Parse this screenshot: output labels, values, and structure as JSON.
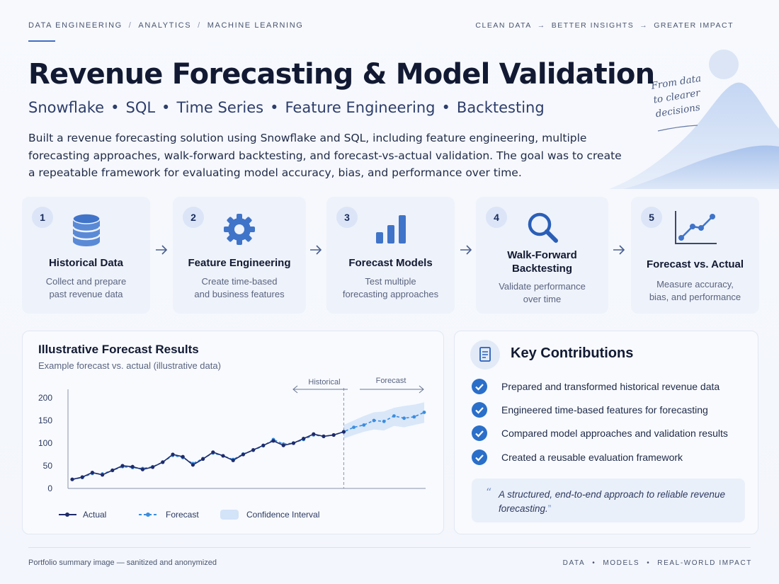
{
  "nav": {
    "items": [
      "DATA ENGINEERING",
      "ANALYTICS",
      "MACHINE LEARNING"
    ],
    "separator": "/"
  },
  "tagline": {
    "items": [
      "CLEAN DATA",
      "BETTER INSIGHTS",
      "GREATER IMPACT"
    ],
    "arrow": "→"
  },
  "hero": {
    "title": "Revenue Forecasting & Model Validation",
    "tags": [
      "Snowflake",
      "SQL",
      "Time Series",
      "Feature Engineering",
      "Backtesting"
    ],
    "tag_separator": "•",
    "description": "Built a revenue forecasting solution using Snowflake and SQL, including feature engineering, multiple forecasting approaches, walk-forward backtesting, and forecast-vs-actual validation. The goal was to create a repeatable framework for evaluating model accuracy, bias, and performance over time.",
    "handwritten": [
      "From data",
      "to clearer",
      "decisions"
    ]
  },
  "steps": [
    {
      "number": "1",
      "title": "Historical Data",
      "text": [
        "Collect and prepare",
        "past revenue data"
      ],
      "icon": "database-icon"
    },
    {
      "number": "2",
      "title": "Feature Engineering",
      "text": [
        "Create time-based",
        "and business features"
      ],
      "icon": "gear-icon"
    },
    {
      "number": "3",
      "title": "Forecast Models",
      "text": [
        "Test multiple",
        "forecasting approaches"
      ],
      "icon": "bar-chart-icon"
    },
    {
      "number": "4",
      "title": [
        "Walk-Forward",
        "Backtesting"
      ],
      "text": [
        "Validate performance",
        "over time"
      ],
      "icon": "magnifier-icon"
    },
    {
      "number": "5",
      "title": "Forecast vs. Actual",
      "text": [
        "Measure accuracy,",
        "bias, and performance"
      ],
      "icon": "line-chart-icon"
    }
  ],
  "results": {
    "title": "Illustrative Forecast Results",
    "subtitle": "Example forecast vs. actual (illustrative data)",
    "region_labels": {
      "historical": "Historical",
      "forecast": "Forecast"
    },
    "legend": {
      "actual": "Actual",
      "forecast": "Forecast",
      "ci": "Confidence Interval"
    }
  },
  "chart_data": {
    "type": "line",
    "title": "Illustrative Forecast Results",
    "subtitle": "Example forecast vs. actual (illustrative data)",
    "xlabel": "",
    "ylabel": "",
    "ylim": [
      0,
      200
    ],
    "yticks": [
      0,
      50,
      100,
      150,
      200
    ],
    "grid": false,
    "legend_position": "bottom",
    "series": [
      {
        "name": "Actual",
        "color": "#1e2b6b",
        "x": [
          0,
          1,
          2,
          3,
          4,
          5,
          6,
          7,
          8,
          9,
          10,
          11,
          12,
          13,
          14,
          15,
          16,
          17,
          18,
          19,
          20,
          21,
          22,
          23,
          24,
          25,
          26,
          27
        ],
        "values": [
          20,
          25,
          35,
          30,
          40,
          50,
          48,
          42,
          47,
          58,
          75,
          70,
          52,
          65,
          80,
          72,
          62,
          75,
          85,
          95,
          105,
          95,
          100,
          110,
          120,
          115,
          118,
          125
        ]
      },
      {
        "name": "Forecast",
        "color": "#3a8de0",
        "x": [
          0,
          1,
          2,
          3,
          4,
          5,
          6,
          7,
          8,
          9,
          10,
          11,
          12,
          13,
          14,
          15,
          16,
          17,
          18,
          19,
          20,
          21,
          22,
          23,
          24,
          25,
          26,
          27,
          28,
          29,
          30,
          31,
          32,
          33,
          34,
          35
        ],
        "values": [
          20,
          24,
          33,
          32,
          40,
          48,
          46,
          44,
          48,
          58,
          73,
          68,
          55,
          66,
          78,
          72,
          64,
          76,
          84,
          94,
          108,
          98,
          100,
          108,
          118,
          115,
          118,
          125,
          135,
          140,
          150,
          148,
          160,
          155,
          158,
          168
        ]
      },
      {
        "name": "Confidence Interval",
        "color": "#d3e3f8",
        "x": [
          27,
          28,
          29,
          30,
          31,
          32,
          33,
          34,
          35
        ],
        "upper": [
          140,
          150,
          160,
          168,
          170,
          178,
          182,
          185,
          190
        ],
        "lower": [
          110,
          118,
          125,
          130,
          128,
          138,
          135,
          140,
          145
        ]
      }
    ],
    "forecast_start_x": 27
  },
  "contributions": {
    "title": "Key Contributions",
    "items": [
      "Prepared and transformed historical revenue data",
      "Engineered time-based features for forecasting",
      "Compared model approaches and validation results",
      "Created a reusable evaluation framework"
    ],
    "quote": "A structured, end-to-end approach to reliable revenue forecasting.",
    "quote_open": "“",
    "quote_close": "”"
  },
  "footer": {
    "left": "Portfolio summary image — sanitized and anonymized",
    "right": [
      "DATA",
      "MODELS",
      "REAL-WORLD IMPACT"
    ],
    "separator": "•"
  }
}
